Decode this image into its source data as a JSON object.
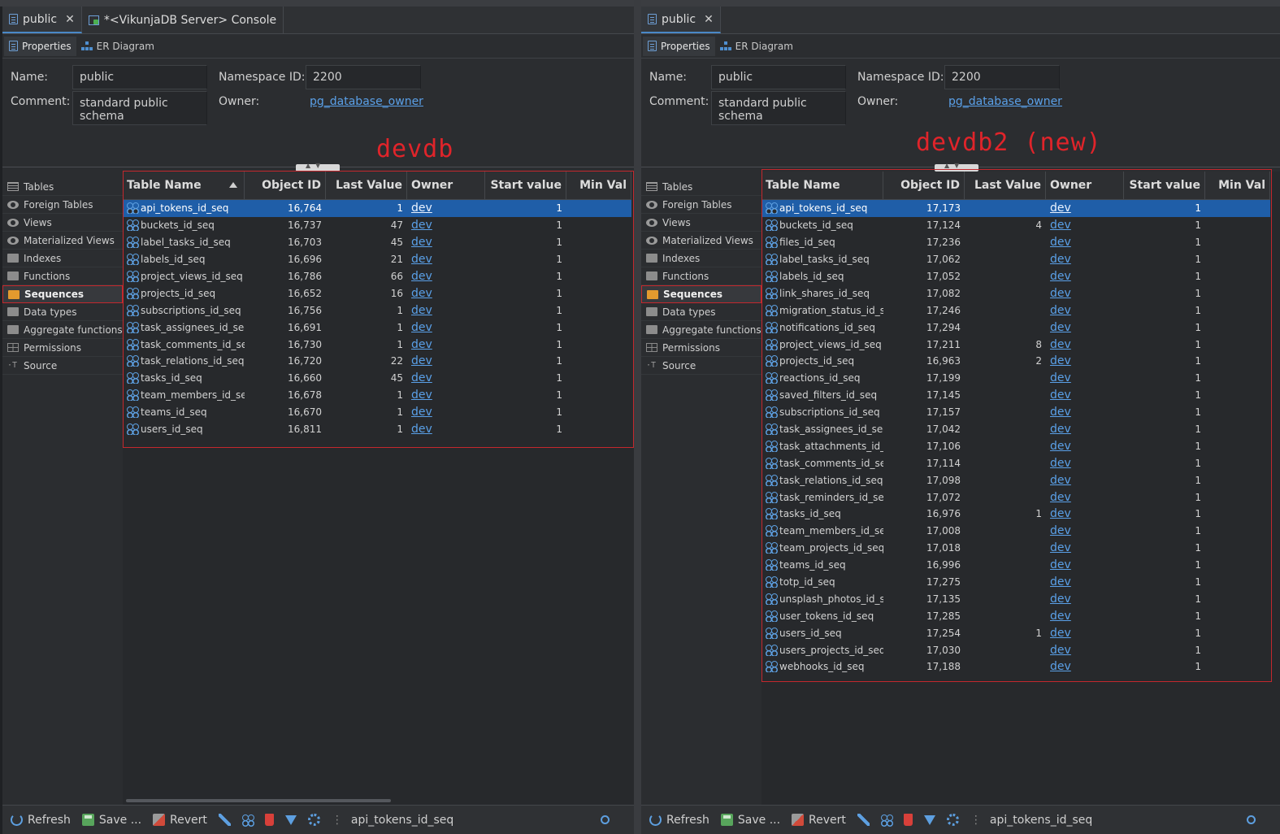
{
  "left": {
    "tabs": [
      {
        "label": "public",
        "close": "✕",
        "icon": "schema-doc-icon"
      },
      {
        "label": "*<VikunjaDB Server> Console",
        "icon": "console-icon"
      }
    ],
    "subtabs": [
      {
        "label": "Properties"
      },
      {
        "label": "ER Diagram"
      }
    ],
    "props": {
      "name_label": "Name:",
      "name_value": "public",
      "ns_label": "Namespace ID:",
      "ns_value": "2200",
      "comment_label": "Comment:",
      "comment_value": "standard public schema",
      "owner_label": "Owner:",
      "owner_value": "pg_database_owner"
    },
    "annotation": "devdb",
    "nav": [
      "Tables",
      "Foreign Tables",
      "Views",
      "Materialized Views",
      "Indexes",
      "Functions",
      "Sequences",
      "Data types",
      "Aggregate functions",
      "Permissions",
      "Source"
    ],
    "nav_selected": "Sequences",
    "columns": [
      "Table Name",
      "Object ID",
      "Last Value",
      "Owner",
      "Start value",
      "Min Val"
    ],
    "rows": [
      {
        "name": "api_tokens_id_seq",
        "oid": "16,764",
        "last": "1",
        "owner": "dev",
        "start": "1"
      },
      {
        "name": "buckets_id_seq",
        "oid": "16,737",
        "last": "47",
        "owner": "dev",
        "start": "1"
      },
      {
        "name": "label_tasks_id_seq",
        "oid": "16,703",
        "last": "45",
        "owner": "dev",
        "start": "1"
      },
      {
        "name": "labels_id_seq",
        "oid": "16,696",
        "last": "21",
        "owner": "dev",
        "start": "1"
      },
      {
        "name": "project_views_id_seq",
        "oid": "16,786",
        "last": "66",
        "owner": "dev",
        "start": "1"
      },
      {
        "name": "projects_id_seq",
        "oid": "16,652",
        "last": "16",
        "owner": "dev",
        "start": "1"
      },
      {
        "name": "subscriptions_id_seq",
        "oid": "16,756",
        "last": "1",
        "owner": "dev",
        "start": "1"
      },
      {
        "name": "task_assignees_id_seq",
        "oid": "16,691",
        "last": "1",
        "owner": "dev",
        "start": "1"
      },
      {
        "name": "task_comments_id_seq",
        "oid": "16,730",
        "last": "1",
        "owner": "dev",
        "start": "1"
      },
      {
        "name": "task_relations_id_seq",
        "oid": "16,720",
        "last": "22",
        "owner": "dev",
        "start": "1"
      },
      {
        "name": "tasks_id_seq",
        "oid": "16,660",
        "last": "45",
        "owner": "dev",
        "start": "1"
      },
      {
        "name": "team_members_id_seq",
        "oid": "16,678",
        "last": "1",
        "owner": "dev",
        "start": "1"
      },
      {
        "name": "teams_id_seq",
        "oid": "16,670",
        "last": "1",
        "owner": "dev",
        "start": "1"
      },
      {
        "name": "users_id_seq",
        "oid": "16,811",
        "last": "1",
        "owner": "dev",
        "start": "1"
      }
    ],
    "toolbar": {
      "refresh": "Refresh",
      "save": "Save ...",
      "revert": "Revert",
      "selected": "api_tokens_id_seq"
    }
  },
  "right": {
    "tabs": [
      {
        "label": "public",
        "close": "✕",
        "icon": "schema-doc-icon"
      }
    ],
    "subtabs": [
      {
        "label": "Properties"
      },
      {
        "label": "ER Diagram"
      }
    ],
    "props": {
      "name_label": "Name:",
      "name_value": "public",
      "ns_label": "Namespace ID:",
      "ns_value": "2200",
      "comment_label": "Comment:",
      "comment_value": "standard public schema",
      "owner_label": "Owner:",
      "owner_value": "pg_database_owner"
    },
    "annotation": "devdb2 (new)",
    "nav": [
      "Tables",
      "Foreign Tables",
      "Views",
      "Materialized Views",
      "Indexes",
      "Functions",
      "Sequences",
      "Data types",
      "Aggregate functions",
      "Permissions",
      "Source"
    ],
    "nav_selected": "Sequences",
    "columns": [
      "Table Name",
      "Object ID",
      "Last Value",
      "Owner",
      "Start value",
      "Min Val"
    ],
    "rows": [
      {
        "name": "api_tokens_id_seq",
        "oid": "17,173",
        "last": "",
        "owner": "dev",
        "start": "1"
      },
      {
        "name": "buckets_id_seq",
        "oid": "17,124",
        "last": "4",
        "owner": "dev",
        "start": "1"
      },
      {
        "name": "files_id_seq",
        "oid": "17,236",
        "last": "",
        "owner": "dev",
        "start": "1"
      },
      {
        "name": "label_tasks_id_seq",
        "oid": "17,062",
        "last": "",
        "owner": "dev",
        "start": "1"
      },
      {
        "name": "labels_id_seq",
        "oid": "17,052",
        "last": "",
        "owner": "dev",
        "start": "1"
      },
      {
        "name": "link_shares_id_seq",
        "oid": "17,082",
        "last": "",
        "owner": "dev",
        "start": "1"
      },
      {
        "name": "migration_status_id_sec",
        "oid": "17,246",
        "last": "",
        "owner": "dev",
        "start": "1"
      },
      {
        "name": "notifications_id_seq",
        "oid": "17,294",
        "last": "",
        "owner": "dev",
        "start": "1"
      },
      {
        "name": "project_views_id_seq",
        "oid": "17,211",
        "last": "8",
        "owner": "dev",
        "start": "1"
      },
      {
        "name": "projects_id_seq",
        "oid": "16,963",
        "last": "2",
        "owner": "dev",
        "start": "1"
      },
      {
        "name": "reactions_id_seq",
        "oid": "17,199",
        "last": "",
        "owner": "dev",
        "start": "1"
      },
      {
        "name": "saved_filters_id_seq",
        "oid": "17,145",
        "last": "",
        "owner": "dev",
        "start": "1"
      },
      {
        "name": "subscriptions_id_seq",
        "oid": "17,157",
        "last": "",
        "owner": "dev",
        "start": "1"
      },
      {
        "name": "task_assignees_id_seq",
        "oid": "17,042",
        "last": "",
        "owner": "dev",
        "start": "1"
      },
      {
        "name": "task_attachments_id_se",
        "oid": "17,106",
        "last": "",
        "owner": "dev",
        "start": "1"
      },
      {
        "name": "task_comments_id_seq",
        "oid": "17,114",
        "last": "",
        "owner": "dev",
        "start": "1"
      },
      {
        "name": "task_relations_id_seq",
        "oid": "17,098",
        "last": "",
        "owner": "dev",
        "start": "1"
      },
      {
        "name": "task_reminders_id_seq",
        "oid": "17,072",
        "last": "",
        "owner": "dev",
        "start": "1"
      },
      {
        "name": "tasks_id_seq",
        "oid": "16,976",
        "last": "1",
        "owner": "dev",
        "start": "1"
      },
      {
        "name": "team_members_id_seq",
        "oid": "17,008",
        "last": "",
        "owner": "dev",
        "start": "1"
      },
      {
        "name": "team_projects_id_seq",
        "oid": "17,018",
        "last": "",
        "owner": "dev",
        "start": "1"
      },
      {
        "name": "teams_id_seq",
        "oid": "16,996",
        "last": "",
        "owner": "dev",
        "start": "1"
      },
      {
        "name": "totp_id_seq",
        "oid": "17,275",
        "last": "",
        "owner": "dev",
        "start": "1"
      },
      {
        "name": "unsplash_photos_id_sec",
        "oid": "17,135",
        "last": "",
        "owner": "dev",
        "start": "1"
      },
      {
        "name": "user_tokens_id_seq",
        "oid": "17,285",
        "last": "",
        "owner": "dev",
        "start": "1"
      },
      {
        "name": "users_id_seq",
        "oid": "17,254",
        "last": "1",
        "owner": "dev",
        "start": "1"
      },
      {
        "name": "users_projects_id_seq",
        "oid": "17,030",
        "last": "",
        "owner": "dev",
        "start": "1"
      },
      {
        "name": "webhooks_id_seq",
        "oid": "17,188",
        "last": "",
        "owner": "dev",
        "start": "1"
      }
    ],
    "toolbar": {
      "refresh": "Refresh",
      "save": "Save ...",
      "revert": "Revert",
      "selected": "api_tokens_id_seq"
    }
  },
  "colors": {
    "accent": "#1f5ea8",
    "link": "#5aa0e8",
    "annotation": "#e0242a"
  }
}
